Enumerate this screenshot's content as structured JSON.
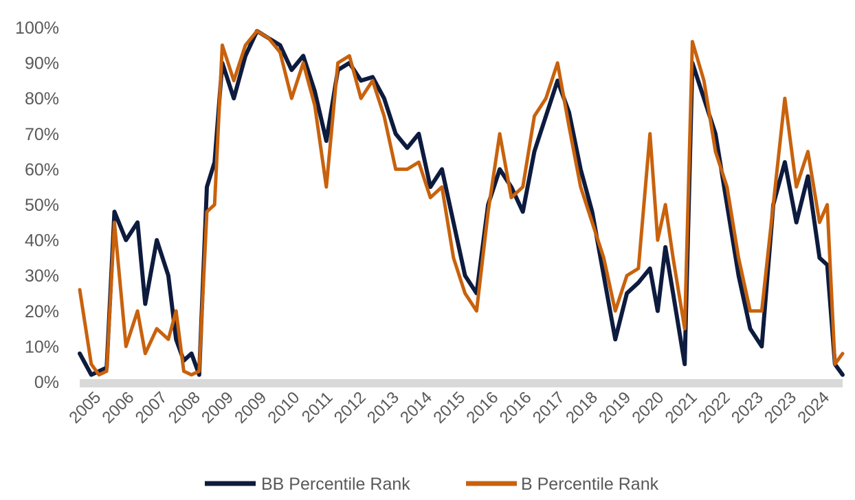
{
  "chart_data": {
    "type": "line",
    "title": "",
    "xlabel": "",
    "ylabel": "",
    "ylim": [
      0,
      100
    ],
    "y_ticks": [
      "0%",
      "10%",
      "20%",
      "30%",
      "40%",
      "50%",
      "60%",
      "70%",
      "80%",
      "90%",
      "100%"
    ],
    "x_ticks": [
      "2005",
      "2006",
      "2007",
      "2008",
      "2009",
      "2009",
      "2010",
      "2011",
      "2012",
      "2013",
      "2014",
      "2015",
      "2016",
      "2016",
      "2017",
      "2018",
      "2019",
      "2020",
      "2021",
      "2022",
      "2023",
      "2023",
      "2024"
    ],
    "xlim": [
      2004.3,
      2024.1
    ],
    "grid": false,
    "legend_position": "bottom",
    "x": [
      2004.3,
      2004.6,
      2004.8,
      2005.0,
      2005.2,
      2005.5,
      2005.8,
      2006.0,
      2006.3,
      2006.6,
      2006.8,
      2007.0,
      2007.2,
      2007.4,
      2007.6,
      2007.8,
      2008.0,
      2008.3,
      2008.6,
      2008.9,
      2009.2,
      2009.5,
      2009.8,
      2010.1,
      2010.4,
      2010.7,
      2011.0,
      2011.3,
      2011.6,
      2011.9,
      2012.2,
      2012.5,
      2012.8,
      2013.1,
      2013.4,
      2013.7,
      2014.0,
      2014.3,
      2014.6,
      2014.9,
      2015.2,
      2015.5,
      2015.8,
      2016.1,
      2016.4,
      2016.7,
      2017.0,
      2017.3,
      2017.6,
      2017.9,
      2018.2,
      2018.5,
      2018.8,
      2019.1,
      2019.3,
      2019.5,
      2019.7,
      2020.0,
      2020.2,
      2020.5,
      2020.8,
      2021.1,
      2021.4,
      2021.7,
      2022.0,
      2022.3,
      2022.6,
      2022.9,
      2023.2,
      2023.5,
      2023.7,
      2023.9,
      2024.1
    ],
    "series": [
      {
        "name": "BB Percentile Rank",
        "color": "#0d1b3e",
        "values": [
          8,
          2,
          3,
          4,
          48,
          40,
          45,
          22,
          40,
          30,
          12,
          6,
          8,
          2,
          55,
          62,
          90,
          80,
          92,
          99,
          97,
          95,
          88,
          92,
          82,
          68,
          88,
          90,
          85,
          86,
          80,
          70,
          66,
          70,
          55,
          60,
          45,
          30,
          25,
          50,
          60,
          55,
          48,
          65,
          75,
          85,
          76,
          60,
          48,
          30,
          12,
          25,
          28,
          32,
          20,
          38,
          25,
          5,
          90,
          80,
          70,
          50,
          30,
          15,
          10,
          50,
          62,
          45,
          58,
          35,
          33,
          5,
          2
        ]
      },
      {
        "name": "B Percentile Rank",
        "color": "#c8620d",
        "values": [
          26,
          5,
          2,
          3,
          45,
          10,
          20,
          8,
          15,
          12,
          20,
          3,
          2,
          3,
          48,
          50,
          95,
          85,
          95,
          99,
          97,
          93,
          80,
          90,
          78,
          55,
          90,
          92,
          80,
          85,
          75,
          60,
          60,
          62,
          52,
          55,
          35,
          25,
          20,
          48,
          70,
          52,
          55,
          75,
          80,
          90,
          72,
          55,
          45,
          35,
          20,
          30,
          32,
          70,
          40,
          50,
          35,
          15,
          96,
          85,
          65,
          55,
          35,
          20,
          20,
          50,
          80,
          55,
          65,
          45,
          50,
          5,
          8
        ]
      }
    ]
  }
}
